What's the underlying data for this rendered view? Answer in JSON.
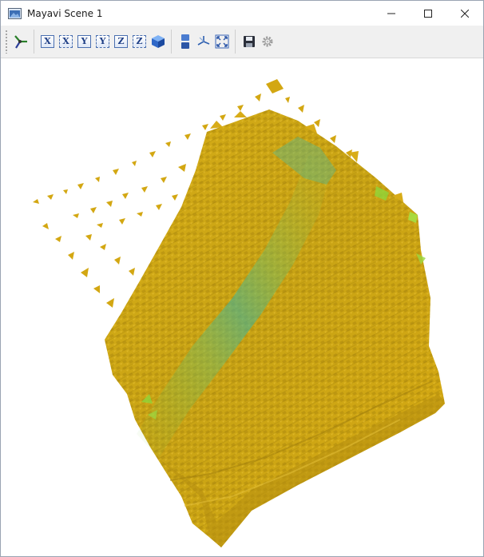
{
  "window": {
    "title": "Mayavi Scene 1",
    "app_icon": "scene-window-icon"
  },
  "window_controls": {
    "minimize": "minimize-icon",
    "maximize": "maximize-icon",
    "close": "close-icon"
  },
  "toolbar": {
    "buttons": [
      {
        "name": "isometric-view-button",
        "icon": "isometric-axes-icon"
      },
      {
        "name": "view-plus-x-button",
        "icon": "x-axis-icon",
        "label": "X"
      },
      {
        "name": "view-minus-x-button",
        "icon": "x-axis-icon",
        "label": "X"
      },
      {
        "name": "view-plus-y-button",
        "icon": "y-axis-icon",
        "label": "Y"
      },
      {
        "name": "view-minus-y-button",
        "icon": "y-axis-icon",
        "label": "Y"
      },
      {
        "name": "view-plus-z-button",
        "icon": "z-axis-icon",
        "label": "Z"
      },
      {
        "name": "view-minus-z-button",
        "icon": "z-axis-icon",
        "label": "Z"
      },
      {
        "name": "isometric-cube-button",
        "icon": "cube-icon"
      },
      {
        "name": "parallel-projection-button",
        "icon": "projection-icon"
      },
      {
        "name": "axes-indicator-button",
        "icon": "axes-indicator-icon"
      },
      {
        "name": "full-screen-button",
        "icon": "fullscreen-icon"
      },
      {
        "name": "save-scene-button",
        "icon": "floppy-disk-icon"
      },
      {
        "name": "scene-settings-button",
        "icon": "gear-icon"
      }
    ]
  },
  "scene": {
    "background": "#ffffff",
    "surface_color": "#d7a915",
    "surface_shadow": "#a67f0c",
    "highlight_color": "#4fbf8a",
    "accent_color": "#8fd63a"
  }
}
